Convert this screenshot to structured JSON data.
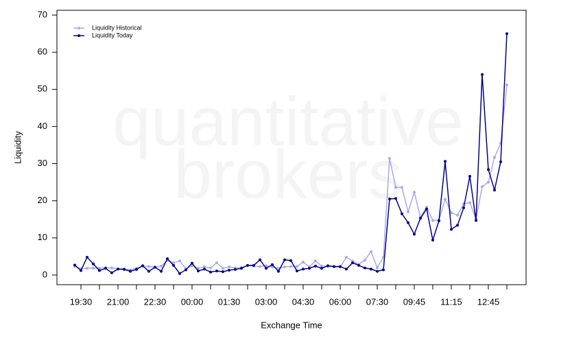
{
  "chart_data": {
    "type": "line",
    "watermark": [
      "quantitative",
      "brokers"
    ],
    "x_label": "Exchange Time",
    "y_label": "Liquidity",
    "categories": [
      null,
      "19:30",
      null,
      null,
      null,
      null,
      null,
      "21:00",
      null,
      null,
      null,
      null,
      null,
      "22:30",
      null,
      null,
      null,
      null,
      null,
      "00:00",
      null,
      null,
      null,
      null,
      null,
      "01:30",
      null,
      null,
      null,
      null,
      null,
      "03:00",
      null,
      null,
      null,
      null,
      null,
      "04:30",
      null,
      null,
      null,
      null,
      null,
      "06:00",
      null,
      null,
      null,
      null,
      null,
      "07:30",
      null,
      null,
      null,
      null,
      null,
      "09:45",
      null,
      null,
      null,
      null,
      null,
      "11:15",
      null,
      null,
      null,
      null,
      null,
      "12:45",
      null,
      null,
      null
    ],
    "series": [
      {
        "name": "Liquidity Historical",
        "color": "#a9a9ec",
        "values": [
          2.3,
          1.7,
          1.8,
          1.9,
          1.8,
          2.0,
          1.9,
          1.7,
          1.7,
          1.4,
          1.8,
          2.4,
          2.3,
          2.1,
          2.4,
          3.9,
          3.3,
          3.8,
          1.7,
          2.5,
          1.8,
          2.2,
          1.9,
          3.3,
          1.8,
          2.2,
          1.9,
          2.0,
          2.6,
          2.4,
          2.3,
          2.5,
          2.2,
          1.8,
          2.2,
          2.3,
          2.3,
          3.5,
          2.2,
          3.8,
          2.4,
          2.3,
          2.2,
          2.1,
          4.8,
          3.8,
          2.9,
          4.0,
          6.3,
          2.0,
          4.8,
          31.4,
          23.6,
          23.6,
          17.0,
          22.3,
          15.6,
          18.3,
          14.7,
          14.8,
          20.4,
          16.8,
          16.1,
          19.2,
          19.5,
          15.1,
          23.8,
          25.0,
          31.7,
          35.5,
          51.2
        ]
      },
      {
        "name": "Liquidity Today",
        "color": "#00008b",
        "values": [
          2.7,
          1.2,
          4.8,
          3.0,
          1.2,
          1.8,
          0.6,
          1.6,
          1.5,
          1.0,
          1.5,
          2.5,
          1.0,
          2.1,
          1.0,
          4.4,
          2.6,
          0.4,
          1.4,
          3.2,
          1.1,
          1.6,
          0.8,
          1.1,
          0.9,
          1.3,
          1.5,
          1.8,
          2.6,
          2.6,
          4.1,
          1.8,
          2.8,
          1.0,
          4.1,
          3.9,
          1.1,
          1.6,
          1.8,
          2.4,
          1.8,
          2.5,
          2.3,
          2.3,
          1.6,
          3.3,
          2.6,
          1.9,
          1.6,
          1.0,
          1.4,
          20.5,
          20.6,
          16.5,
          14.1,
          11.0,
          15.3,
          17.8,
          9.4,
          14.6,
          30.6,
          12.3,
          13.4,
          18.1,
          26.6,
          14.7,
          54.0,
          28.4,
          22.9,
          30.5,
          65.0
        ]
      }
    ],
    "ylim": [
      -2.6,
      71.3
    ],
    "yticks": [
      0,
      10,
      20,
      30,
      40,
      50,
      60,
      70
    ],
    "legend": "top-left"
  }
}
